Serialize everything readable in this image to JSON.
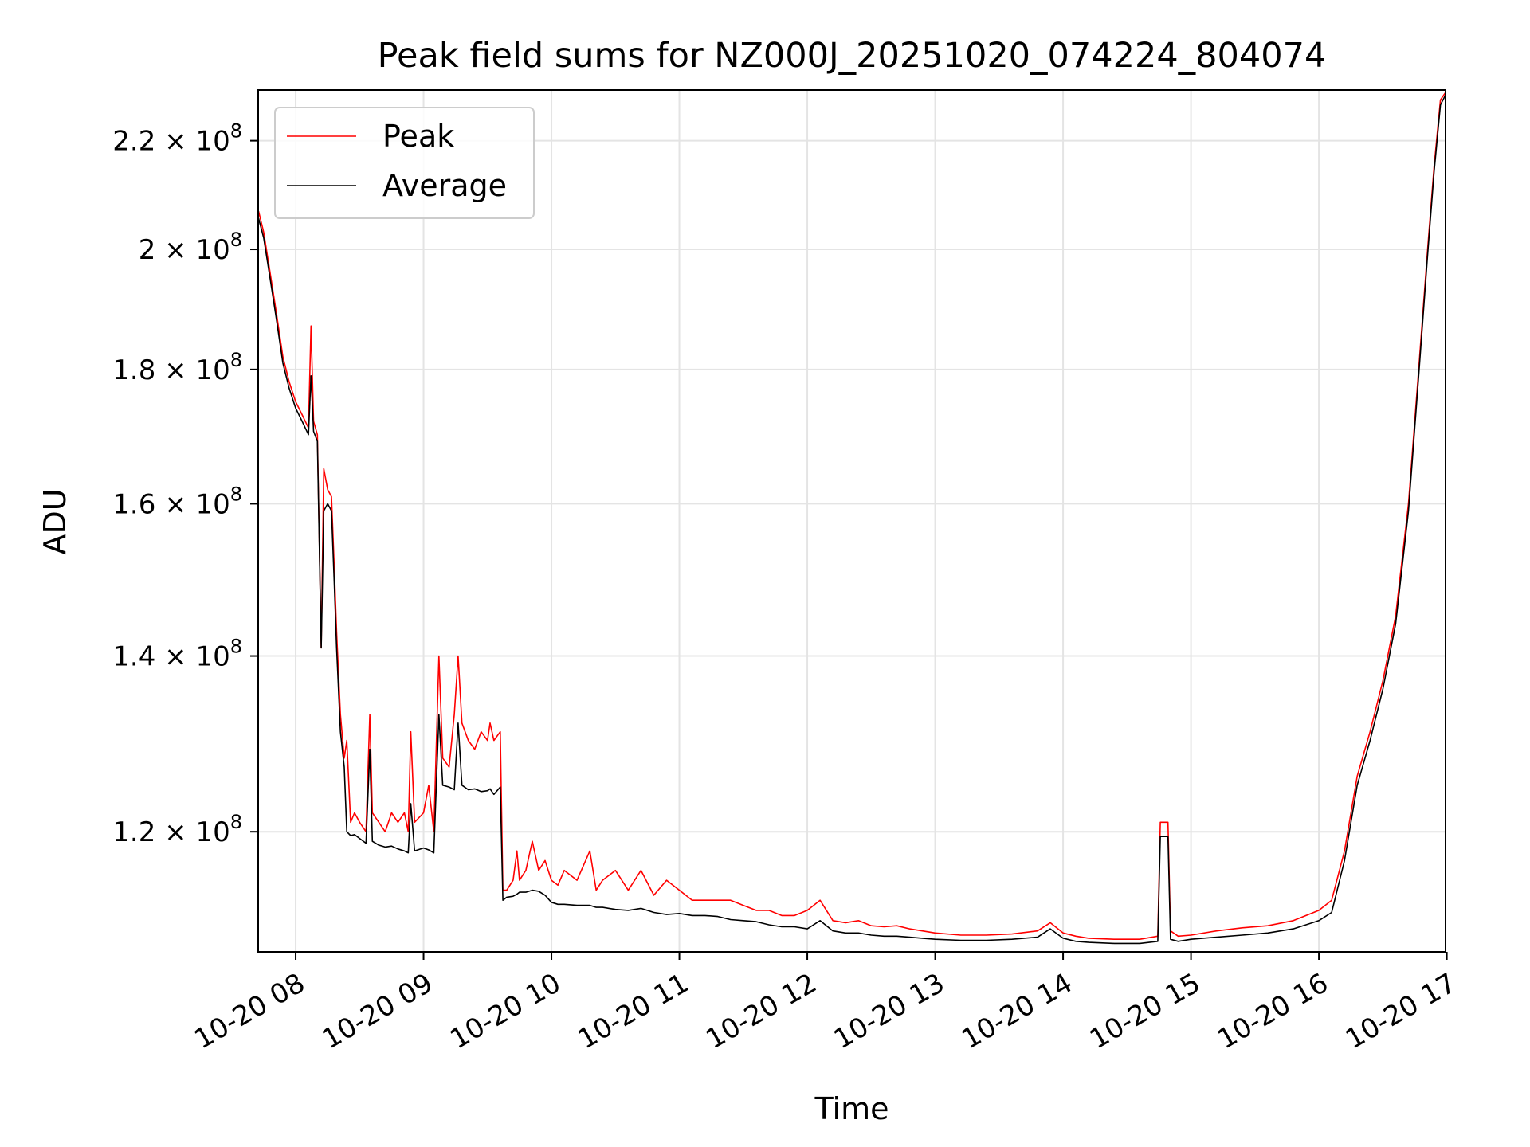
{
  "chart_data": {
    "type": "line",
    "title": "Peak field sums for NZ000J_20251020_074224_804074",
    "xlabel": "Time",
    "ylabel": "ADU",
    "x_unit": "hours of day (2025-10-20)",
    "xlim": [
      7.707,
      16.99
    ],
    "ylim": [
      108000000,
      230000000
    ],
    "yscale": "log",
    "grid": true,
    "legend_position": "top-left",
    "x_ticks": [
      {
        "value": 8,
        "label": "10-20 08"
      },
      {
        "value": 9,
        "label": "10-20 09"
      },
      {
        "value": 10,
        "label": "10-20 10"
      },
      {
        "value": 11,
        "label": "10-20 11"
      },
      {
        "value": 12,
        "label": "10-20 12"
      },
      {
        "value": 13,
        "label": "10-20 13"
      },
      {
        "value": 14,
        "label": "10-20 14"
      },
      {
        "value": 15,
        "label": "10-20 15"
      },
      {
        "value": 16,
        "label": "10-20 16"
      },
      {
        "value": 17,
        "label": "10-20 17"
      }
    ],
    "y_ticks": [
      {
        "value": 120000000,
        "mantissa": "1.2",
        "base": "10",
        "exponent": "8"
      },
      {
        "value": 140000000,
        "mantissa": "1.4",
        "base": "10",
        "exponent": "8"
      },
      {
        "value": 160000000,
        "mantissa": "1.6",
        "base": "10",
        "exponent": "8"
      },
      {
        "value": 180000000,
        "mantissa": "1.8",
        "base": "10",
        "exponent": "8"
      },
      {
        "value": 200000000,
        "mantissa": "2",
        "base": "10",
        "exponent": "8"
      },
      {
        "value": 220000000,
        "mantissa": "2.2",
        "base": "10",
        "exponent": "8"
      }
    ],
    "series": [
      {
        "name": "Peak",
        "color": "#ff0000",
        "points": [
          [
            7.71,
            206.8
          ],
          [
            7.75,
            203
          ],
          [
            7.8,
            196
          ],
          [
            7.85,
            189
          ],
          [
            7.9,
            182
          ],
          [
            7.95,
            178
          ],
          [
            8.0,
            175
          ],
          [
            8.05,
            173
          ],
          [
            8.1,
            171
          ],
          [
            8.12,
            187
          ],
          [
            8.14,
            172
          ],
          [
            8.17,
            170
          ],
          [
            8.2,
            141
          ],
          [
            8.22,
            165
          ],
          [
            8.25,
            162
          ],
          [
            8.28,
            161
          ],
          [
            8.3,
            152
          ],
          [
            8.32,
            143
          ],
          [
            8.35,
            133
          ],
          [
            8.38,
            128
          ],
          [
            8.4,
            130
          ],
          [
            8.43,
            121
          ],
          [
            8.46,
            122
          ],
          [
            8.5,
            121
          ],
          [
            8.55,
            120
          ],
          [
            8.58,
            133
          ],
          [
            8.6,
            122
          ],
          [
            8.65,
            121
          ],
          [
            8.7,
            120
          ],
          [
            8.75,
            122
          ],
          [
            8.8,
            121
          ],
          [
            8.85,
            122
          ],
          [
            8.88,
            120
          ],
          [
            8.9,
            131
          ],
          [
            8.93,
            121
          ],
          [
            9.0,
            122
          ],
          [
            9.04,
            125
          ],
          [
            9.08,
            120
          ],
          [
            9.12,
            140
          ],
          [
            9.15,
            128
          ],
          [
            9.2,
            127
          ],
          [
            9.24,
            133
          ],
          [
            9.27,
            140
          ],
          [
            9.3,
            132
          ],
          [
            9.35,
            130
          ],
          [
            9.4,
            129
          ],
          [
            9.45,
            131
          ],
          [
            9.5,
            130
          ],
          [
            9.52,
            132
          ],
          [
            9.55,
            130
          ],
          [
            9.6,
            131
          ],
          [
            9.62,
            114
          ],
          [
            9.65,
            114
          ],
          [
            9.7,
            115
          ],
          [
            9.73,
            118
          ],
          [
            9.75,
            115
          ],
          [
            9.8,
            116
          ],
          [
            9.85,
            119
          ],
          [
            9.9,
            116
          ],
          [
            9.95,
            117
          ],
          [
            10.0,
            115
          ],
          [
            10.05,
            114.5
          ],
          [
            10.1,
            116
          ],
          [
            10.2,
            115
          ],
          [
            10.3,
            118
          ],
          [
            10.35,
            114
          ],
          [
            10.4,
            115
          ],
          [
            10.5,
            116
          ],
          [
            10.6,
            114
          ],
          [
            10.7,
            116
          ],
          [
            10.8,
            113.5
          ],
          [
            10.9,
            115
          ],
          [
            11.0,
            114
          ],
          [
            11.1,
            113
          ],
          [
            11.2,
            113
          ],
          [
            11.3,
            113
          ],
          [
            11.4,
            113
          ],
          [
            11.5,
            112.5
          ],
          [
            11.6,
            112
          ],
          [
            11.7,
            112
          ],
          [
            11.8,
            111.5
          ],
          [
            11.9,
            111.5
          ],
          [
            12.0,
            112
          ],
          [
            12.1,
            113
          ],
          [
            12.2,
            111
          ],
          [
            12.3,
            110.8
          ],
          [
            12.4,
            111
          ],
          [
            12.5,
            110.5
          ],
          [
            12.6,
            110.4
          ],
          [
            12.7,
            110.5
          ],
          [
            12.8,
            110.2
          ],
          [
            12.9,
            110
          ],
          [
            13.0,
            109.8
          ],
          [
            13.2,
            109.6
          ],
          [
            13.4,
            109.6
          ],
          [
            13.6,
            109.7
          ],
          [
            13.8,
            110
          ],
          [
            13.9,
            110.8
          ],
          [
            14.0,
            109.8
          ],
          [
            14.1,
            109.5
          ],
          [
            14.2,
            109.3
          ],
          [
            14.4,
            109.2
          ],
          [
            14.6,
            109.2
          ],
          [
            14.74,
            109.5
          ],
          [
            14.76,
            121
          ],
          [
            14.82,
            121
          ],
          [
            14.84,
            110
          ],
          [
            14.9,
            109.5
          ],
          [
            15.0,
            109.6
          ],
          [
            15.2,
            110
          ],
          [
            15.4,
            110.3
          ],
          [
            15.6,
            110.5
          ],
          [
            15.8,
            111
          ],
          [
            16.0,
            112
          ],
          [
            16.1,
            113
          ],
          [
            16.2,
            118
          ],
          [
            16.3,
            126
          ],
          [
            16.4,
            131
          ],
          [
            16.5,
            137
          ],
          [
            16.6,
            145
          ],
          [
            16.7,
            160
          ],
          [
            16.78,
            180
          ],
          [
            16.85,
            200
          ],
          [
            16.9,
            215
          ],
          [
            16.95,
            228
          ],
          [
            16.99,
            229.5
          ]
        ]
      },
      {
        "name": "Average",
        "color": "#000000",
        "points": [
          [
            7.71,
            205.5
          ],
          [
            7.75,
            202
          ],
          [
            7.8,
            195
          ],
          [
            7.85,
            188
          ],
          [
            7.9,
            181
          ],
          [
            7.95,
            177
          ],
          [
            8.0,
            174
          ],
          [
            8.05,
            172
          ],
          [
            8.1,
            170
          ],
          [
            8.12,
            179
          ],
          [
            8.14,
            170.5
          ],
          [
            8.17,
            169
          ],
          [
            8.2,
            141
          ],
          [
            8.22,
            159
          ],
          [
            8.25,
            160
          ],
          [
            8.28,
            159
          ],
          [
            8.3,
            150
          ],
          [
            8.32,
            141
          ],
          [
            8.35,
            131
          ],
          [
            8.38,
            127
          ],
          [
            8.4,
            120
          ],
          [
            8.43,
            119.6
          ],
          [
            8.46,
            119.7
          ],
          [
            8.5,
            119.3
          ],
          [
            8.55,
            118.8
          ],
          [
            8.58,
            129
          ],
          [
            8.6,
            119
          ],
          [
            8.65,
            118.6
          ],
          [
            8.7,
            118.4
          ],
          [
            8.75,
            118.5
          ],
          [
            8.8,
            118.2
          ],
          [
            8.85,
            118
          ],
          [
            8.88,
            117.8
          ],
          [
            8.9,
            123
          ],
          [
            8.93,
            118
          ],
          [
            9.0,
            118.3
          ],
          [
            9.04,
            118.1
          ],
          [
            9.08,
            117.8
          ],
          [
            9.12,
            133
          ],
          [
            9.15,
            125
          ],
          [
            9.2,
            124.8
          ],
          [
            9.24,
            124.5
          ],
          [
            9.27,
            132
          ],
          [
            9.3,
            125
          ],
          [
            9.35,
            124.5
          ],
          [
            9.4,
            124.6
          ],
          [
            9.45,
            124.3
          ],
          [
            9.5,
            124.4
          ],
          [
            9.52,
            124.6
          ],
          [
            9.55,
            124
          ],
          [
            9.6,
            124.8
          ],
          [
            9.62,
            113
          ],
          [
            9.65,
            113.3
          ],
          [
            9.7,
            113.4
          ],
          [
            9.73,
            113.6
          ],
          [
            9.75,
            113.8
          ],
          [
            9.8,
            113.8
          ],
          [
            9.85,
            114
          ],
          [
            9.9,
            113.9
          ],
          [
            9.95,
            113.5
          ],
          [
            10.0,
            112.8
          ],
          [
            10.05,
            112.6
          ],
          [
            10.1,
            112.6
          ],
          [
            10.2,
            112.5
          ],
          [
            10.3,
            112.5
          ],
          [
            10.35,
            112.3
          ],
          [
            10.4,
            112.3
          ],
          [
            10.5,
            112.1
          ],
          [
            10.6,
            112
          ],
          [
            10.7,
            112.2
          ],
          [
            10.8,
            111.8
          ],
          [
            10.9,
            111.6
          ],
          [
            11.0,
            111.7
          ],
          [
            11.1,
            111.5
          ],
          [
            11.2,
            111.5
          ],
          [
            11.3,
            111.4
          ],
          [
            11.4,
            111.1
          ],
          [
            11.5,
            111
          ],
          [
            11.6,
            110.9
          ],
          [
            11.7,
            110.6
          ],
          [
            11.8,
            110.4
          ],
          [
            11.9,
            110.4
          ],
          [
            12.0,
            110.2
          ],
          [
            12.1,
            111
          ],
          [
            12.2,
            110
          ],
          [
            12.3,
            109.8
          ],
          [
            12.4,
            109.8
          ],
          [
            12.5,
            109.6
          ],
          [
            12.6,
            109.5
          ],
          [
            12.7,
            109.5
          ],
          [
            12.8,
            109.4
          ],
          [
            12.9,
            109.3
          ],
          [
            13.0,
            109.2
          ],
          [
            13.2,
            109.1
          ],
          [
            13.4,
            109.1
          ],
          [
            13.6,
            109.2
          ],
          [
            13.8,
            109.4
          ],
          [
            13.9,
            110.2
          ],
          [
            14.0,
            109.3
          ],
          [
            14.1,
            109
          ],
          [
            14.2,
            108.9
          ],
          [
            14.4,
            108.8
          ],
          [
            14.6,
            108.8
          ],
          [
            14.74,
            109
          ],
          [
            14.76,
            119.5
          ],
          [
            14.82,
            119.5
          ],
          [
            14.84,
            109.2
          ],
          [
            14.9,
            109
          ],
          [
            15.0,
            109.2
          ],
          [
            15.2,
            109.4
          ],
          [
            15.4,
            109.6
          ],
          [
            15.6,
            109.8
          ],
          [
            15.8,
            110.2
          ],
          [
            16.0,
            111
          ],
          [
            16.1,
            111.8
          ],
          [
            16.2,
            117
          ],
          [
            16.3,
            125
          ],
          [
            16.4,
            130
          ],
          [
            16.5,
            136
          ],
          [
            16.6,
            144
          ],
          [
            16.7,
            159
          ],
          [
            16.78,
            179
          ],
          [
            16.85,
            199
          ],
          [
            16.9,
            214
          ],
          [
            16.95,
            227
          ],
          [
            16.99,
            229
          ]
        ]
      }
    ]
  }
}
